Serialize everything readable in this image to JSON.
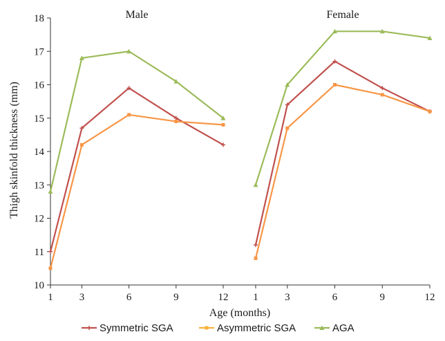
{
  "chart_data": {
    "type": "line",
    "ylabel": "Thigh skinfold thickness (mm)",
    "xlabel": "Age (months)",
    "ylim": [
      10,
      18
    ],
    "yticks": [
      10,
      11,
      12,
      13,
      14,
      15,
      16,
      17,
      18
    ],
    "grid": false,
    "legend_position": "bottom",
    "categories": [
      "1",
      "3",
      "6",
      "9",
      "12"
    ],
    "x": [
      1,
      3,
      6,
      9,
      12
    ],
    "panels": [
      {
        "title": "Male",
        "series": [
          {
            "name": "Symmetric SGA",
            "color": "#c0504d",
            "marker": "plus",
            "values": [
              11.0,
              14.7,
              15.9,
              15.0,
              14.2
            ]
          },
          {
            "name": "Asymmetric SGA",
            "color": "#f79646",
            "marker": "square",
            "values": [
              10.5,
              14.2,
              15.1,
              14.9,
              14.8
            ]
          },
          {
            "name": "AGA",
            "color": "#9bbb59",
            "marker": "triangle",
            "values": [
              12.8,
              16.8,
              17.0,
              16.1,
              15.0
            ]
          }
        ]
      },
      {
        "title": "Female",
        "series": [
          {
            "name": "Symmetric SGA",
            "color": "#c0504d",
            "marker": "plus",
            "values": [
              11.2,
              15.4,
              16.7,
              15.9,
              15.2
            ]
          },
          {
            "name": "Asymmetric SGA",
            "color": "#f79646",
            "marker": "square",
            "values": [
              10.8,
              14.7,
              16.0,
              15.7,
              15.2
            ]
          },
          {
            "name": "AGA",
            "color": "#9bbb59",
            "marker": "triangle",
            "values": [
              13.0,
              16.0,
              17.6,
              17.6,
              17.4
            ]
          }
        ]
      }
    ],
    "legend": [
      {
        "name": "Symmetric SGA",
        "color": "#c0504d"
      },
      {
        "name": "Asymmetric SGA",
        "color": "#f7b23b"
      },
      {
        "name": "AGA",
        "color": "#9bbb59"
      }
    ]
  }
}
